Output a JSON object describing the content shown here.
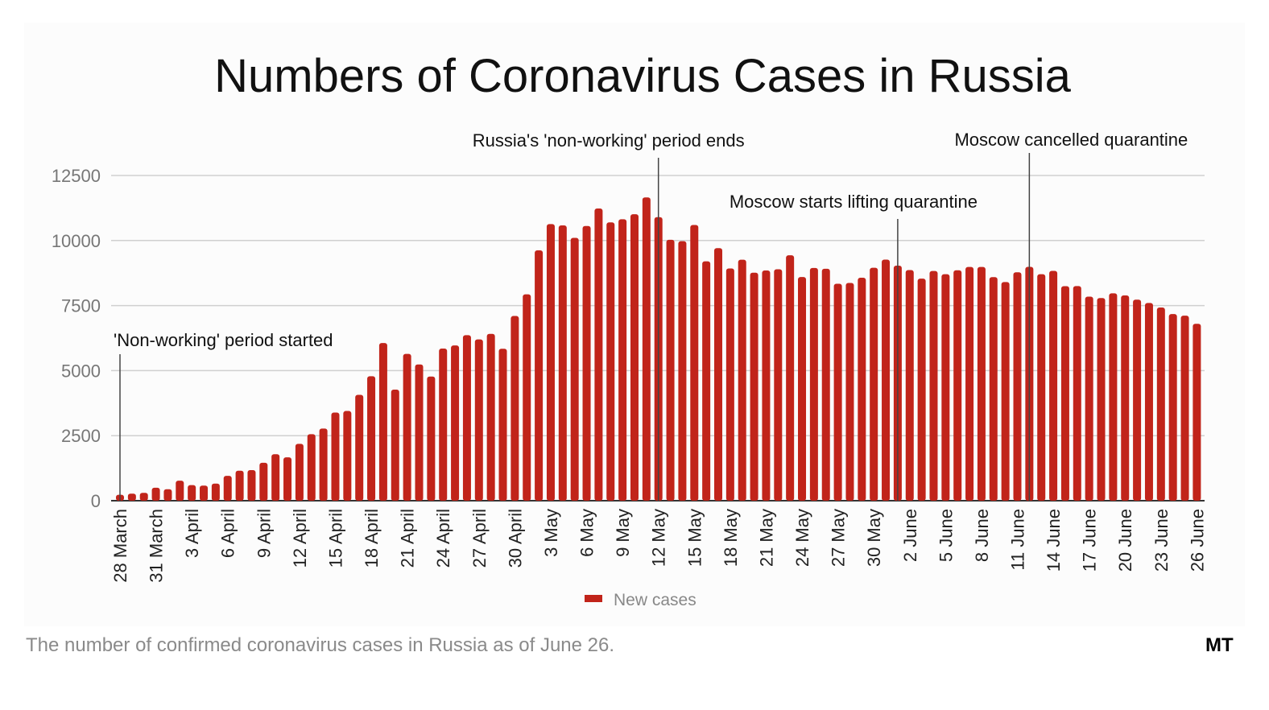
{
  "chart_data": {
    "type": "bar",
    "title": "Numbers of Coronavirus Cases in Russia",
    "xlabel": "",
    "ylabel": "",
    "ylim": [
      0,
      12500
    ],
    "yticks": [
      "0",
      "2500",
      "5000",
      "7500",
      "10000",
      "12500"
    ],
    "grid": true,
    "legend_position": "bottom",
    "bar_color": "#c1241a",
    "categories": [
      "28 March",
      "29 March",
      "30 March",
      "31 March",
      "1 April",
      "2 April",
      "3 April",
      "4 April",
      "5 April",
      "6 April",
      "7 April",
      "8 April",
      "9 April",
      "10 April",
      "11 April",
      "12 April",
      "13 April",
      "14 April",
      "15 April",
      "16 April",
      "17 April",
      "18 April",
      "19 April",
      "20 April",
      "21 April",
      "22 April",
      "23 April",
      "24 April",
      "25 April",
      "26 April",
      "27 April",
      "28 April",
      "29 April",
      "30 April",
      "1 May",
      "2 May",
      "3 May",
      "4 May",
      "5 May",
      "6 May",
      "7 May",
      "8 May",
      "9 May",
      "10 May",
      "11 May",
      "12 May",
      "13 May",
      "14 May",
      "15 May",
      "16 May",
      "17 May",
      "18 May",
      "19 May",
      "20 May",
      "21 May",
      "22 May",
      "23 May",
      "24 May",
      "25 May",
      "26 May",
      "27 May",
      "28 May",
      "29 May",
      "30 May",
      "31 May",
      "1 June",
      "2 June",
      "3 June",
      "4 June",
      "5 June",
      "6 June",
      "7 June",
      "8 June",
      "9 June",
      "10 June",
      "11 June",
      "12 June",
      "13 June",
      "14 June",
      "15 June",
      "16 June",
      "17 June",
      "18 June",
      "19 June",
      "20 June",
      "21 June",
      "22 June",
      "23 June",
      "24 June",
      "25 June",
      "26 June"
    ],
    "series": [
      {
        "name": "New cases",
        "values": [
          228,
          270,
          302,
          500,
          440,
          771,
          601,
          582,
          658,
          954,
          1154,
          1175,
          1459,
          1786,
          1667,
          2186,
          2558,
          2774,
          3388,
          3448,
          4070,
          4785,
          6060,
          4268,
          5642,
          5236,
          4774,
          5849,
          5966,
          6361,
          6198,
          6411,
          5841,
          7099,
          7933,
          9623,
          10633,
          10581,
          10102,
          10559,
          11231,
          10699,
          10817,
          11012,
          11656,
          10899,
          10028,
          9974,
          10598,
          9200,
          9709,
          8926,
          9263,
          8764,
          8849,
          8894,
          9434,
          8599,
          8946,
          8915,
          8338,
          8371,
          8572,
          8952,
          9268,
          9035,
          8863,
          8536,
          8831,
          8705,
          8855,
          8984,
          8985,
          8595,
          8404,
          8779,
          8987,
          8706,
          8835,
          8246,
          8248,
          7843,
          7790,
          7972,
          7889,
          7728,
          7600,
          7425,
          7176,
          7113,
          6800
        ]
      }
    ],
    "xtick_labels": [
      "28 March",
      "31 March",
      "3 April",
      "6 April",
      "9 April",
      "12 April",
      "15 April",
      "18 April",
      "21 April",
      "24 April",
      "27 April",
      "30 April",
      "3 May",
      "6 May",
      "9 May",
      "12 May",
      "15 May",
      "18 May",
      "21 May",
      "24 May",
      "27 May",
      "30 May",
      "2 June",
      "5 June",
      "8 June",
      "11 June",
      "14 June",
      "17 June",
      "20 June",
      "23 June",
      "26 June"
    ],
    "annotations": [
      {
        "text": "'Non-working' period started",
        "category": "28 March"
      },
      {
        "text": "Russia's 'non-working' period ends",
        "category": "12 May"
      },
      {
        "text": "Moscow starts lifting quarantine",
        "category": "1 June"
      },
      {
        "text": "Moscow cancelled quarantine",
        "category": "12 June"
      }
    ]
  },
  "caption": "The number of confirmed coronavirus cases in Russia as of June 26.",
  "logo": "MT"
}
